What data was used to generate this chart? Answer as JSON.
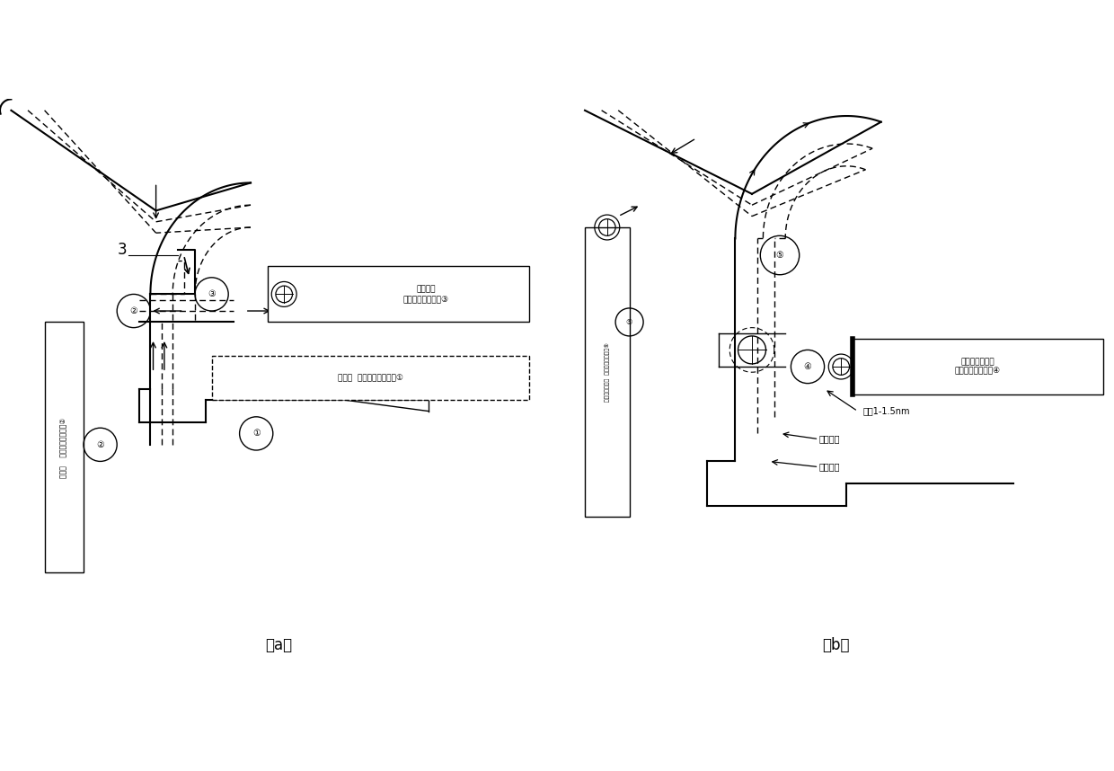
{
  "title_a": "（a）",
  "title_b": "（b）",
  "bg_color": "#ffffff",
  "box_a_3_text1": "直球头刀",
  "box_a_3_text2": "用于车削路径顺序③",
  "box_a_1_text1": "右偏刀  用于车削路径顺序①",
  "box_b_4_text1": "车右型面球头刀",
  "box_b_4_text2": "用于车削路径顺序④",
  "text_left_a": "左偏刀    用于车削路径顺序②",
  "text_left_b": "车左型面球头刀  用于车削路径顺序⑤",
  "text_yuliang": "余量1-1.5nm",
  "text_zuizhong": "最终型面",
  "text_cuchexing": "粗车型面"
}
